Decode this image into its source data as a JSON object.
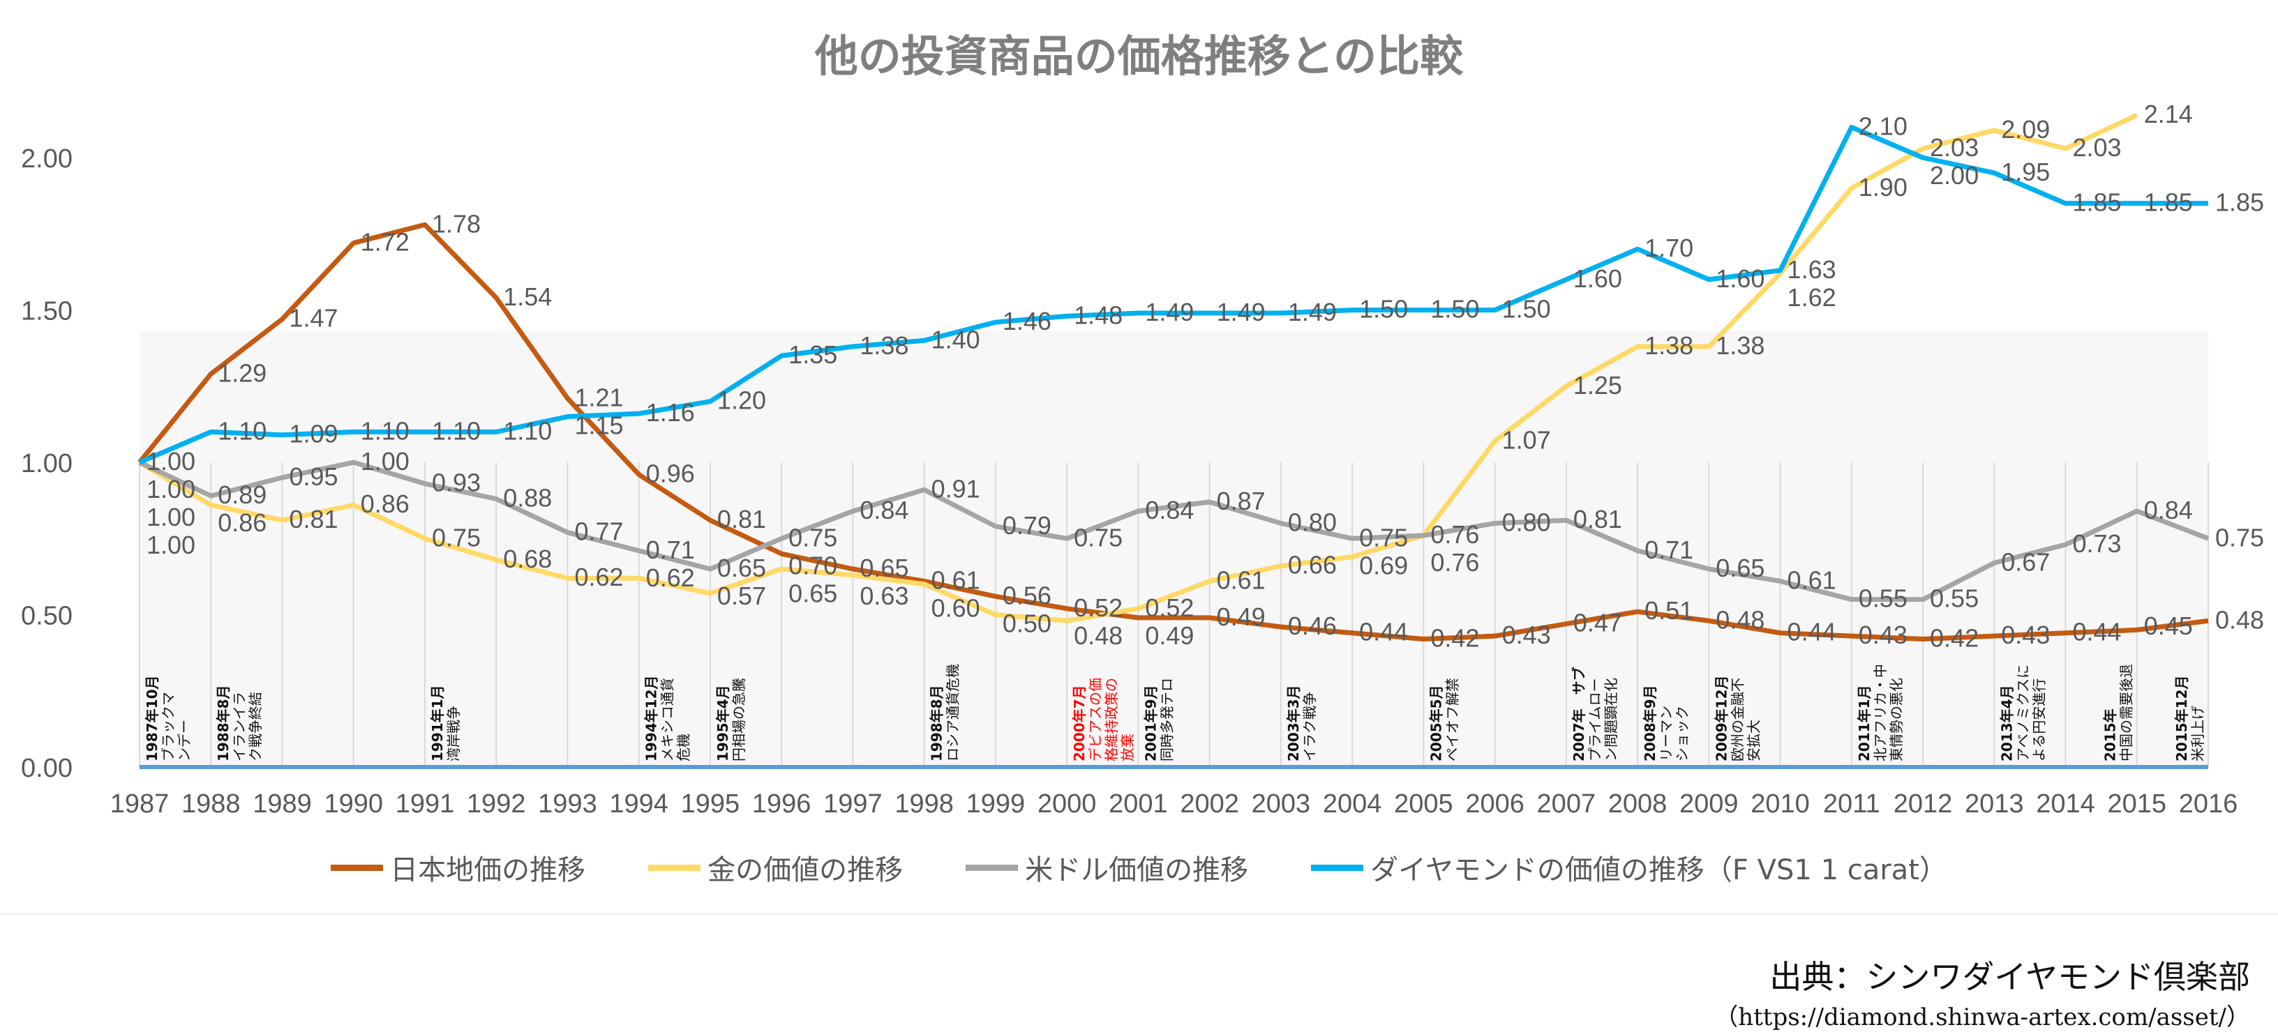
{
  "chart_data": {
    "type": "line",
    "title": "他の投資商品の価格推移との比較",
    "xlabel": "",
    "ylabel": "",
    "ylim": [
      0,
      2.2
    ],
    "yticks": [
      "0.00",
      "0.50",
      "1.00",
      "1.50",
      "2.00"
    ],
    "grid": "vertical",
    "legend": "bottom",
    "categories": [
      "1987",
      "1988",
      "1989",
      "1990",
      "1991",
      "1992",
      "1993",
      "1994",
      "1995",
      "1996",
      "1997",
      "1998",
      "1999",
      "2000",
      "2001",
      "2002",
      "2003",
      "2004",
      "2005",
      "2006",
      "2007",
      "2008",
      "2009",
      "2010",
      "2011",
      "2012",
      "2013",
      "2014",
      "2015",
      "2016"
    ],
    "series": [
      {
        "name": "日本地価の推移",
        "color": "#C55A11",
        "values": [
          1.0,
          1.29,
          1.47,
          1.72,
          1.78,
          1.54,
          1.21,
          0.96,
          0.81,
          0.7,
          0.65,
          0.61,
          0.56,
          0.52,
          0.49,
          0.49,
          0.46,
          0.44,
          0.42,
          0.43,
          0.47,
          0.51,
          0.48,
          0.44,
          0.43,
          0.42,
          0.43,
          0.44,
          0.45,
          0.48
        ]
      },
      {
        "name": "金の価値の推移",
        "color": "#FFD966",
        "values": [
          1.0,
          0.86,
          0.81,
          0.86,
          0.75,
          0.68,
          0.62,
          0.62,
          0.57,
          0.65,
          0.63,
          0.6,
          0.5,
          0.48,
          0.52,
          0.61,
          0.66,
          0.69,
          0.76,
          1.07,
          1.25,
          1.38,
          1.38,
          1.62,
          1.9,
          2.03,
          2.09,
          2.03,
          2.14,
          null
        ]
      },
      {
        "name": "米ドル価値の推移",
        "color": "#A5A5A5",
        "values": [
          1.0,
          0.89,
          0.95,
          1.0,
          0.93,
          0.88,
          0.77,
          0.71,
          0.65,
          0.75,
          0.84,
          0.91,
          0.79,
          0.75,
          0.84,
          0.87,
          0.8,
          0.75,
          0.76,
          0.8,
          0.81,
          0.71,
          0.65,
          0.61,
          0.55,
          0.55,
          0.67,
          0.73,
          0.84,
          0.75
        ]
      },
      {
        "name": "ダイヤモンドの価値の推移（F VS1 1 carat）",
        "color": "#00B0F0",
        "values": [
          1.0,
          1.1,
          1.09,
          1.1,
          1.1,
          1.1,
          1.15,
          1.16,
          1.2,
          1.35,
          1.38,
          1.4,
          1.46,
          1.48,
          1.49,
          1.49,
          1.49,
          1.5,
          1.5,
          1.5,
          1.6,
          1.7,
          1.6,
          1.63,
          2.1,
          2.0,
          1.95,
          1.85,
          1.85,
          1.85
        ]
      }
    ],
    "annotations": [
      {
        "year": "1987",
        "text": "1987年10月\nブラックマ\nンデー",
        "highlight": false
      },
      {
        "year": "1988",
        "text": "1988年8月\nイランイラ\nク戦争終結",
        "highlight": false
      },
      {
        "year": "1991",
        "text": "1991年1月\n湾岸戦争",
        "highlight": false
      },
      {
        "year": "1994",
        "text": "1994年12月\nメキシコ通貨\n危機",
        "highlight": false
      },
      {
        "year": "1995",
        "text": "1995年4月\n円相場の急騰",
        "highlight": false
      },
      {
        "year": "1998",
        "text": "1998年8月\nロシア通貨危機",
        "highlight": false
      },
      {
        "year": "2000",
        "text": "2000年7月\nデビアスの価\n格維持政策の\n放棄",
        "highlight": true
      },
      {
        "year": "2001",
        "text": "2001年9月\n同時多発テロ",
        "highlight": false
      },
      {
        "year": "2003",
        "text": "2003年3月\nイラク戦争",
        "highlight": false
      },
      {
        "year": "2005",
        "text": "2005年5月\nペイオフ解禁",
        "highlight": false
      },
      {
        "year": "2007",
        "text": "2007年　サブ\nプライムロー\nン問題顕在化",
        "highlight": false
      },
      {
        "year": "2008",
        "text": "2008年9月\nリーマン\nショック",
        "highlight": false
      },
      {
        "year": "2009",
        "text": "2009年12月\n欧州の金融不\n安拡大",
        "highlight": false
      },
      {
        "year": "2011",
        "text": "2011年1月\n北アフリカ・中\n東情勢の悪化",
        "highlight": false
      },
      {
        "year": "2013",
        "text": "2013年4月\nアベノミクスに\nよる円安進行",
        "highlight": false
      },
      {
        "year": "2015a",
        "text": "2015年\n中国の需要後退",
        "highlight": false
      },
      {
        "year": "2015b",
        "text": "2015年12月\n米利上げ",
        "highlight": false
      }
    ]
  },
  "source": {
    "line1": "出典：シンワダイヤモンド倶楽部",
    "line2": "（https://diamond.shinwa-artex.com/asset/）"
  }
}
